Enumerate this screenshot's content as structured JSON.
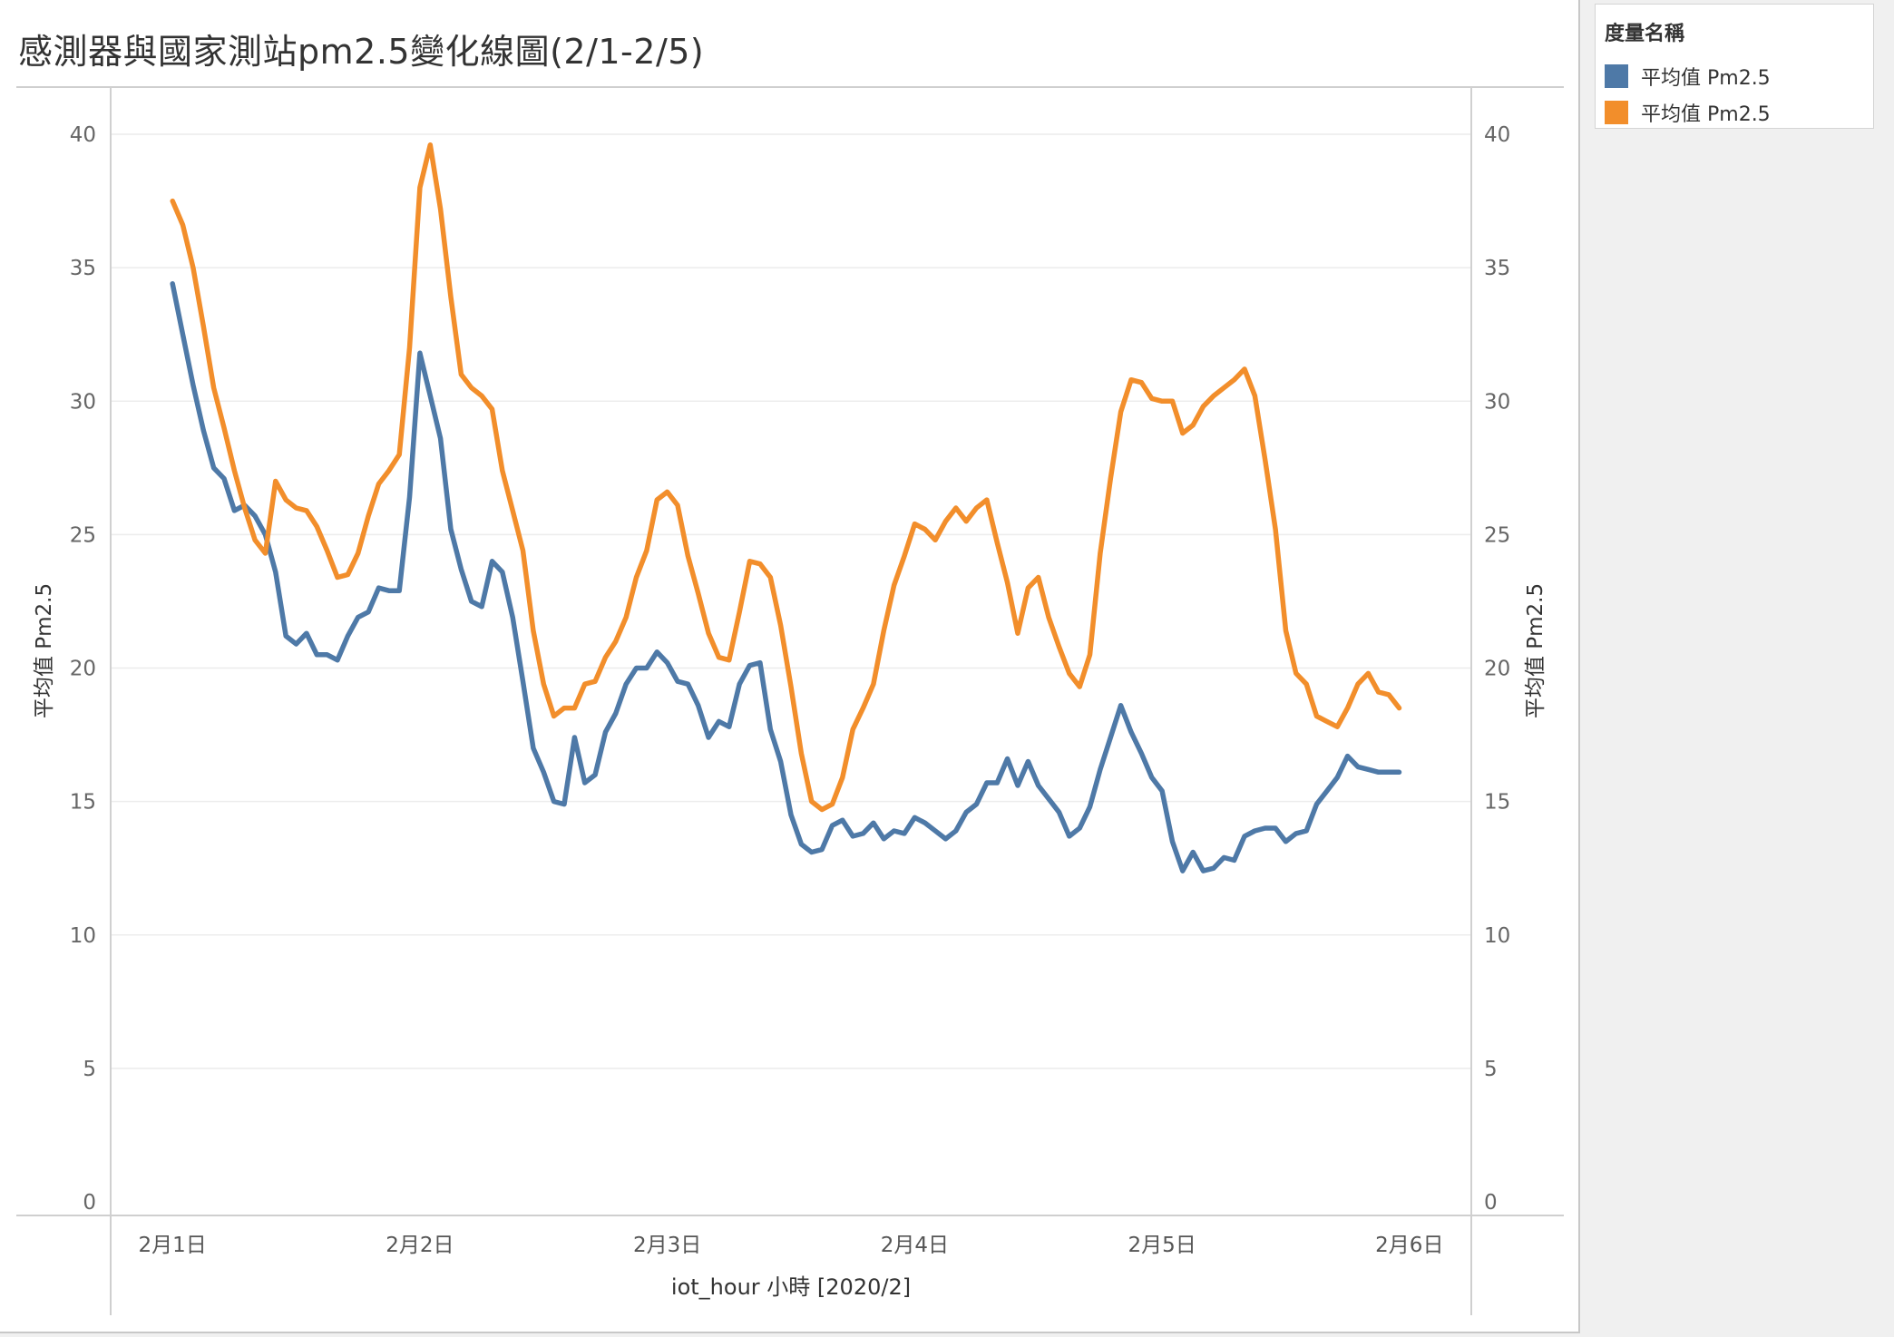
{
  "title": "感測器與國家測站pm2.5變化線圖(2/1-2/5)",
  "legend": {
    "title": "度量名稱",
    "items": [
      {
        "label": "平均值 Pm2.5",
        "color": "#4e79a7"
      },
      {
        "label": "平均值 Pm2.5",
        "color": "#f28e2b"
      }
    ]
  },
  "chart_data": {
    "type": "line",
    "title": "感測器與國家測站pm2.5變化線圖(2/1-2/5)",
    "xlabel": "iot_hour 小時 [2020/2]",
    "ylabel_left": "平均值 Pm2.5",
    "ylabel_right": "平均值 Pm2.5",
    "ylim": [
      0,
      40
    ],
    "yticks": [
      0,
      5,
      10,
      15,
      20,
      25,
      30,
      35,
      40
    ],
    "y_tick_labels": [
      "0",
      "5",
      "10",
      "15",
      "20",
      "25",
      "30",
      "35",
      "40"
    ],
    "x_unit": "hours since 2月1日 00:00",
    "xlim": [
      -6,
      126
    ],
    "xticks": [
      0,
      24,
      48,
      72,
      96,
      120
    ],
    "x_tick_labels": [
      "2月1日",
      "2月2日",
      "2月3日",
      "2月4日",
      "2月5日",
      "2月6日"
    ],
    "grid": true,
    "legend_position": "right",
    "series": [
      {
        "name": "平均值 Pm2.5",
        "color": "#4e79a7",
        "x": [
          0,
          1,
          2,
          3,
          4,
          5,
          6,
          7,
          8,
          9,
          10,
          11,
          12,
          13,
          14,
          15,
          16,
          17,
          18,
          19,
          20,
          21,
          22,
          23,
          24,
          25,
          26,
          27,
          28,
          29,
          30,
          31,
          32,
          33,
          34,
          35,
          36,
          37,
          38,
          39,
          40,
          41,
          42,
          43,
          44,
          45,
          46,
          47,
          48,
          49,
          50,
          51,
          52,
          53,
          54,
          55,
          56,
          57,
          58,
          59,
          60,
          61,
          62,
          63,
          64,
          65,
          66,
          67,
          68,
          69,
          70,
          71,
          72,
          73,
          74,
          75,
          76,
          77,
          78,
          79,
          80,
          81,
          82,
          83,
          84,
          85,
          86,
          87,
          88,
          89,
          90,
          91,
          92,
          93,
          94,
          95,
          96,
          97,
          98,
          99,
          100,
          101,
          102,
          103,
          104,
          105,
          106,
          107,
          108,
          109,
          110,
          111,
          112,
          113,
          114,
          115,
          116,
          117,
          118,
          119
        ],
        "y": [
          34.4,
          32.5,
          30.6,
          28.9,
          27.5,
          27.1,
          25.9,
          26.1,
          25.7,
          25.0,
          23.6,
          21.2,
          20.9,
          21.3,
          20.5,
          20.5,
          20.3,
          21.2,
          21.9,
          22.1,
          23.0,
          22.9,
          22.9,
          26.4,
          31.8,
          30.2,
          28.6,
          25.2,
          23.7,
          22.5,
          22.3,
          24.0,
          23.6,
          21.9,
          19.5,
          17.0,
          16.1,
          15.0,
          14.9,
          17.4,
          15.7,
          16.0,
          17.6,
          18.3,
          19.4,
          20.0,
          20.0,
          20.6,
          20.2,
          19.5,
          19.4,
          18.6,
          17.4,
          18.0,
          17.8,
          19.4,
          20.1,
          20.2,
          17.7,
          16.5,
          14.5,
          13.4,
          13.1,
          13.2,
          14.1,
          14.3,
          13.7,
          13.8,
          14.2,
          13.6,
          13.9,
          13.8,
          14.4,
          14.2,
          13.9,
          13.6,
          13.9,
          14.6,
          14.9,
          15.7,
          15.7,
          16.6,
          15.6,
          16.5,
          15.6,
          15.1,
          14.6,
          13.7,
          14.0,
          14.8,
          16.2,
          17.4,
          18.6,
          17.6,
          16.8,
          15.9,
          15.4,
          13.5,
          12.4,
          13.1,
          12.4,
          12.5,
          12.9,
          12.8,
          13.7,
          13.9,
          14.0,
          14.0,
          13.5,
          13.8,
          13.9,
          14.9,
          15.4,
          15.9,
          16.7,
          16.3,
          16.2,
          16.1,
          16.1,
          16.1
        ]
      },
      {
        "name": "平均值 Pm2.5",
        "color": "#f28e2b",
        "x": [
          0,
          1,
          2,
          3,
          4,
          5,
          6,
          7,
          8,
          9,
          10,
          11,
          12,
          13,
          14,
          15,
          16,
          17,
          18,
          19,
          20,
          21,
          22,
          23,
          24,
          25,
          26,
          27,
          28,
          29,
          30,
          31,
          32,
          33,
          34,
          35,
          36,
          37,
          38,
          39,
          40,
          41,
          42,
          43,
          44,
          45,
          46,
          47,
          48,
          49,
          50,
          51,
          52,
          53,
          54,
          55,
          56,
          57,
          58,
          59,
          60,
          61,
          62,
          63,
          64,
          65,
          66,
          67,
          68,
          69,
          70,
          71,
          72,
          73,
          74,
          75,
          76,
          77,
          78,
          79,
          80,
          81,
          82,
          83,
          84,
          85,
          86,
          87,
          88,
          89,
          90,
          91,
          92,
          93,
          94,
          95,
          96,
          97,
          98,
          99,
          100,
          101,
          102,
          103,
          104,
          105,
          106,
          107,
          108,
          109,
          110,
          111,
          112,
          113,
          114,
          115,
          116,
          117,
          118,
          119
        ],
        "y": [
          37.5,
          36.6,
          35.0,
          32.8,
          30.5,
          29.0,
          27.4,
          26.0,
          24.8,
          24.3,
          27.0,
          26.3,
          26.0,
          25.9,
          25.3,
          24.4,
          23.4,
          23.5,
          24.3,
          25.7,
          26.9,
          27.4,
          28.0,
          32.0,
          38.0,
          39.6,
          37.2,
          33.9,
          31.0,
          30.5,
          30.2,
          29.7,
          27.4,
          25.9,
          24.4,
          21.4,
          19.4,
          18.2,
          18.5,
          18.5,
          19.4,
          19.5,
          20.4,
          21.0,
          21.9,
          23.4,
          24.4,
          26.3,
          26.6,
          26.1,
          24.2,
          22.8,
          21.3,
          20.4,
          20.3,
          22.1,
          24.0,
          23.9,
          23.4,
          21.6,
          19.3,
          16.8,
          15.0,
          14.7,
          14.9,
          15.9,
          17.7,
          18.5,
          19.4,
          21.4,
          23.1,
          24.2,
          25.4,
          25.2,
          24.8,
          25.5,
          26.0,
          25.5,
          26.0,
          26.3,
          24.7,
          23.2,
          21.3,
          23.0,
          23.4,
          21.9,
          20.8,
          19.8,
          19.3,
          20.5,
          24.3,
          27.1,
          29.6,
          30.8,
          30.7,
          30.1,
          30.0,
          30.0,
          28.8,
          29.1,
          29.8,
          30.2,
          30.5,
          30.8,
          31.2,
          30.2,
          27.8,
          25.2,
          21.4,
          19.8,
          19.4,
          18.2,
          18.0,
          17.8,
          18.5,
          19.4,
          19.8,
          19.1,
          19.0,
          18.5
        ]
      }
    ]
  }
}
